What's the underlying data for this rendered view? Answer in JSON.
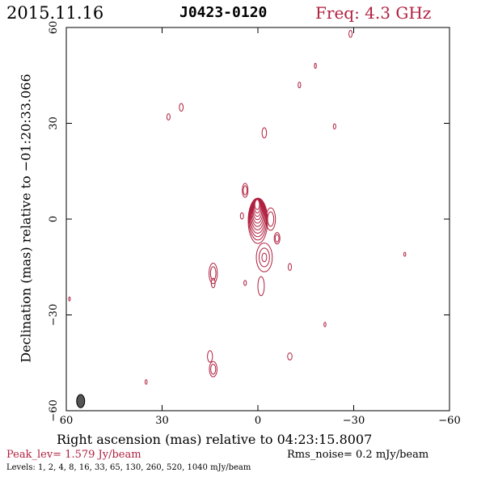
{
  "header": {
    "date": "2015.11.16",
    "source": "J0423-0120",
    "freq": "Freq: 4.3 GHz"
  },
  "footer": {
    "peak": "Peak_lev=  1.579 Jy/beam",
    "rms": "Rms_noise=  0.2 mJy/beam",
    "levels": "Levels:  1,  2,  4,  8,  16,  33,  65, 130, 260, 520, 1040 mJy/beam"
  },
  "colors": {
    "contour": "#b0203f",
    "axes": "#000000",
    "beam": "#555555"
  },
  "chart_data": {
    "type": "contour",
    "xlabel": "Right ascension (mas) relative to 04:23:15.8007",
    "ylabel": "Declination (mas) relative to −01:20:33.066",
    "xlim": [
      60,
      -60
    ],
    "ylim": [
      -60,
      60
    ],
    "xticks": [
      60,
      30,
      0,
      -30,
      -60
    ],
    "yticks": [
      -60,
      -30,
      0,
      30,
      60
    ],
    "xtick_labels": [
      "60",
      "30",
      "0",
      "−30",
      "−60"
    ],
    "ytick_labels": [
      "−60",
      "−30",
      "0",
      "30",
      "60"
    ],
    "peak_lev_jy_per_beam": 1.579,
    "rms_noise_mjy_per_beam": 0.2,
    "contour_levels_mjy_per_beam": [
      1,
      2,
      4,
      8,
      16,
      33,
      65,
      130,
      260,
      520,
      1040
    ],
    "core": {
      "x": 0,
      "y": 2,
      "count": 11
    },
    "beam": {
      "x": 55.5,
      "y": -57,
      "major": 3.6,
      "minor": 2.0
    },
    "components": [
      {
        "x": -2,
        "y": -12,
        "a": 2.5,
        "b": 4.5,
        "n": 3
      },
      {
        "x": -4,
        "y": 0,
        "a": 1.5,
        "b": 3.5,
        "n": 2
      },
      {
        "x": -6,
        "y": -6,
        "a": 0.9,
        "b": 1.8,
        "n": 2
      },
      {
        "x": 4,
        "y": 9,
        "a": 0.9,
        "b": 2.2,
        "n": 2
      },
      {
        "x": 5,
        "y": 1,
        "a": 0.5,
        "b": 1.0,
        "n": 1
      },
      {
        "x": -1,
        "y": -21,
        "a": 1.0,
        "b": 3.0,
        "n": 1
      },
      {
        "x": 4,
        "y": -20,
        "a": 0.4,
        "b": 0.8,
        "n": 1
      },
      {
        "x": 14,
        "y": -17,
        "a": 1.3,
        "b": 3.2,
        "n": 2
      },
      {
        "x": 14,
        "y": -20,
        "a": 0.6,
        "b": 1.5,
        "n": 1
      },
      {
        "x": 14,
        "y": -47,
        "a": 1.2,
        "b": 2.4,
        "n": 2
      },
      {
        "x": 15,
        "y": -43,
        "a": 0.8,
        "b": 1.8,
        "n": 1
      },
      {
        "x": -10,
        "y": -15,
        "a": 0.5,
        "b": 1.1,
        "n": 1
      },
      {
        "x": -10,
        "y": -43,
        "a": 0.7,
        "b": 1.1,
        "n": 1
      },
      {
        "x": -2,
        "y": 27,
        "a": 0.7,
        "b": 1.6,
        "n": 1
      },
      {
        "x": -24,
        "y": 29,
        "a": 0.4,
        "b": 0.8,
        "n": 1
      },
      {
        "x": 28,
        "y": 32,
        "a": 0.5,
        "b": 1.0,
        "n": 1
      },
      {
        "x": 24,
        "y": 35,
        "a": 0.6,
        "b": 1.2,
        "n": 1
      },
      {
        "x": -13,
        "y": 42,
        "a": 0.4,
        "b": 0.9,
        "n": 1
      },
      {
        "x": -18,
        "y": 48,
        "a": 0.3,
        "b": 0.8,
        "n": 1
      },
      {
        "x": -29,
        "y": 58,
        "a": 0.5,
        "b": 1.1,
        "n": 1
      },
      {
        "x": -46,
        "y": -11,
        "a": 0.3,
        "b": 0.6,
        "n": 1
      },
      {
        "x": -21,
        "y": -33,
        "a": 0.3,
        "b": 0.7,
        "n": 1
      },
      {
        "x": 35,
        "y": -51,
        "a": 0.3,
        "b": 0.7,
        "n": 1
      },
      {
        "x": 59,
        "y": -25,
        "a": 0.25,
        "b": 0.6,
        "n": 1
      }
    ]
  }
}
